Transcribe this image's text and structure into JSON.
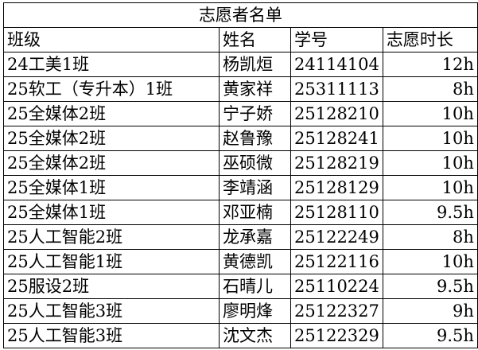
{
  "title": "志愿者名单",
  "headers": [
    "班级",
    "姓名",
    "学号",
    "志愿时长"
  ],
  "rows": [
    [
      "24工美1班",
      "杨凯烜",
      "24114104",
      "12h"
    ],
    [
      "25软工（专升本）1班",
      "黄家祥",
      "25311113",
      "8h"
    ],
    [
      "25全媒体2班",
      "宁子娇",
      "25128210",
      "10h"
    ],
    [
      "25全媒体2班",
      "赵鲁豫",
      "25128241",
      "10h"
    ],
    [
      "25全媒体2班",
      "巫硕微",
      "25128219",
      "10h"
    ],
    [
      "25全媒体1班",
      "李靖涵",
      "25128129",
      "10h"
    ],
    [
      "25全媒体1班",
      "邓亚楠",
      "25128110",
      "9.5h"
    ],
    [
      "25人工智能2班",
      "龙承嘉",
      "25122249",
      "8h"
    ],
    [
      "25人工智能1班",
      "黄德凯",
      "25122116",
      "10h"
    ],
    [
      "25服设2班",
      "石晴儿",
      "25110224",
      "9.5h"
    ],
    [
      "25人工智能3班",
      "廖明烽",
      "25122327",
      "9h"
    ],
    [
      "25人工智能3班",
      "沈文杰",
      "25122329",
      "9.5h"
    ]
  ]
}
